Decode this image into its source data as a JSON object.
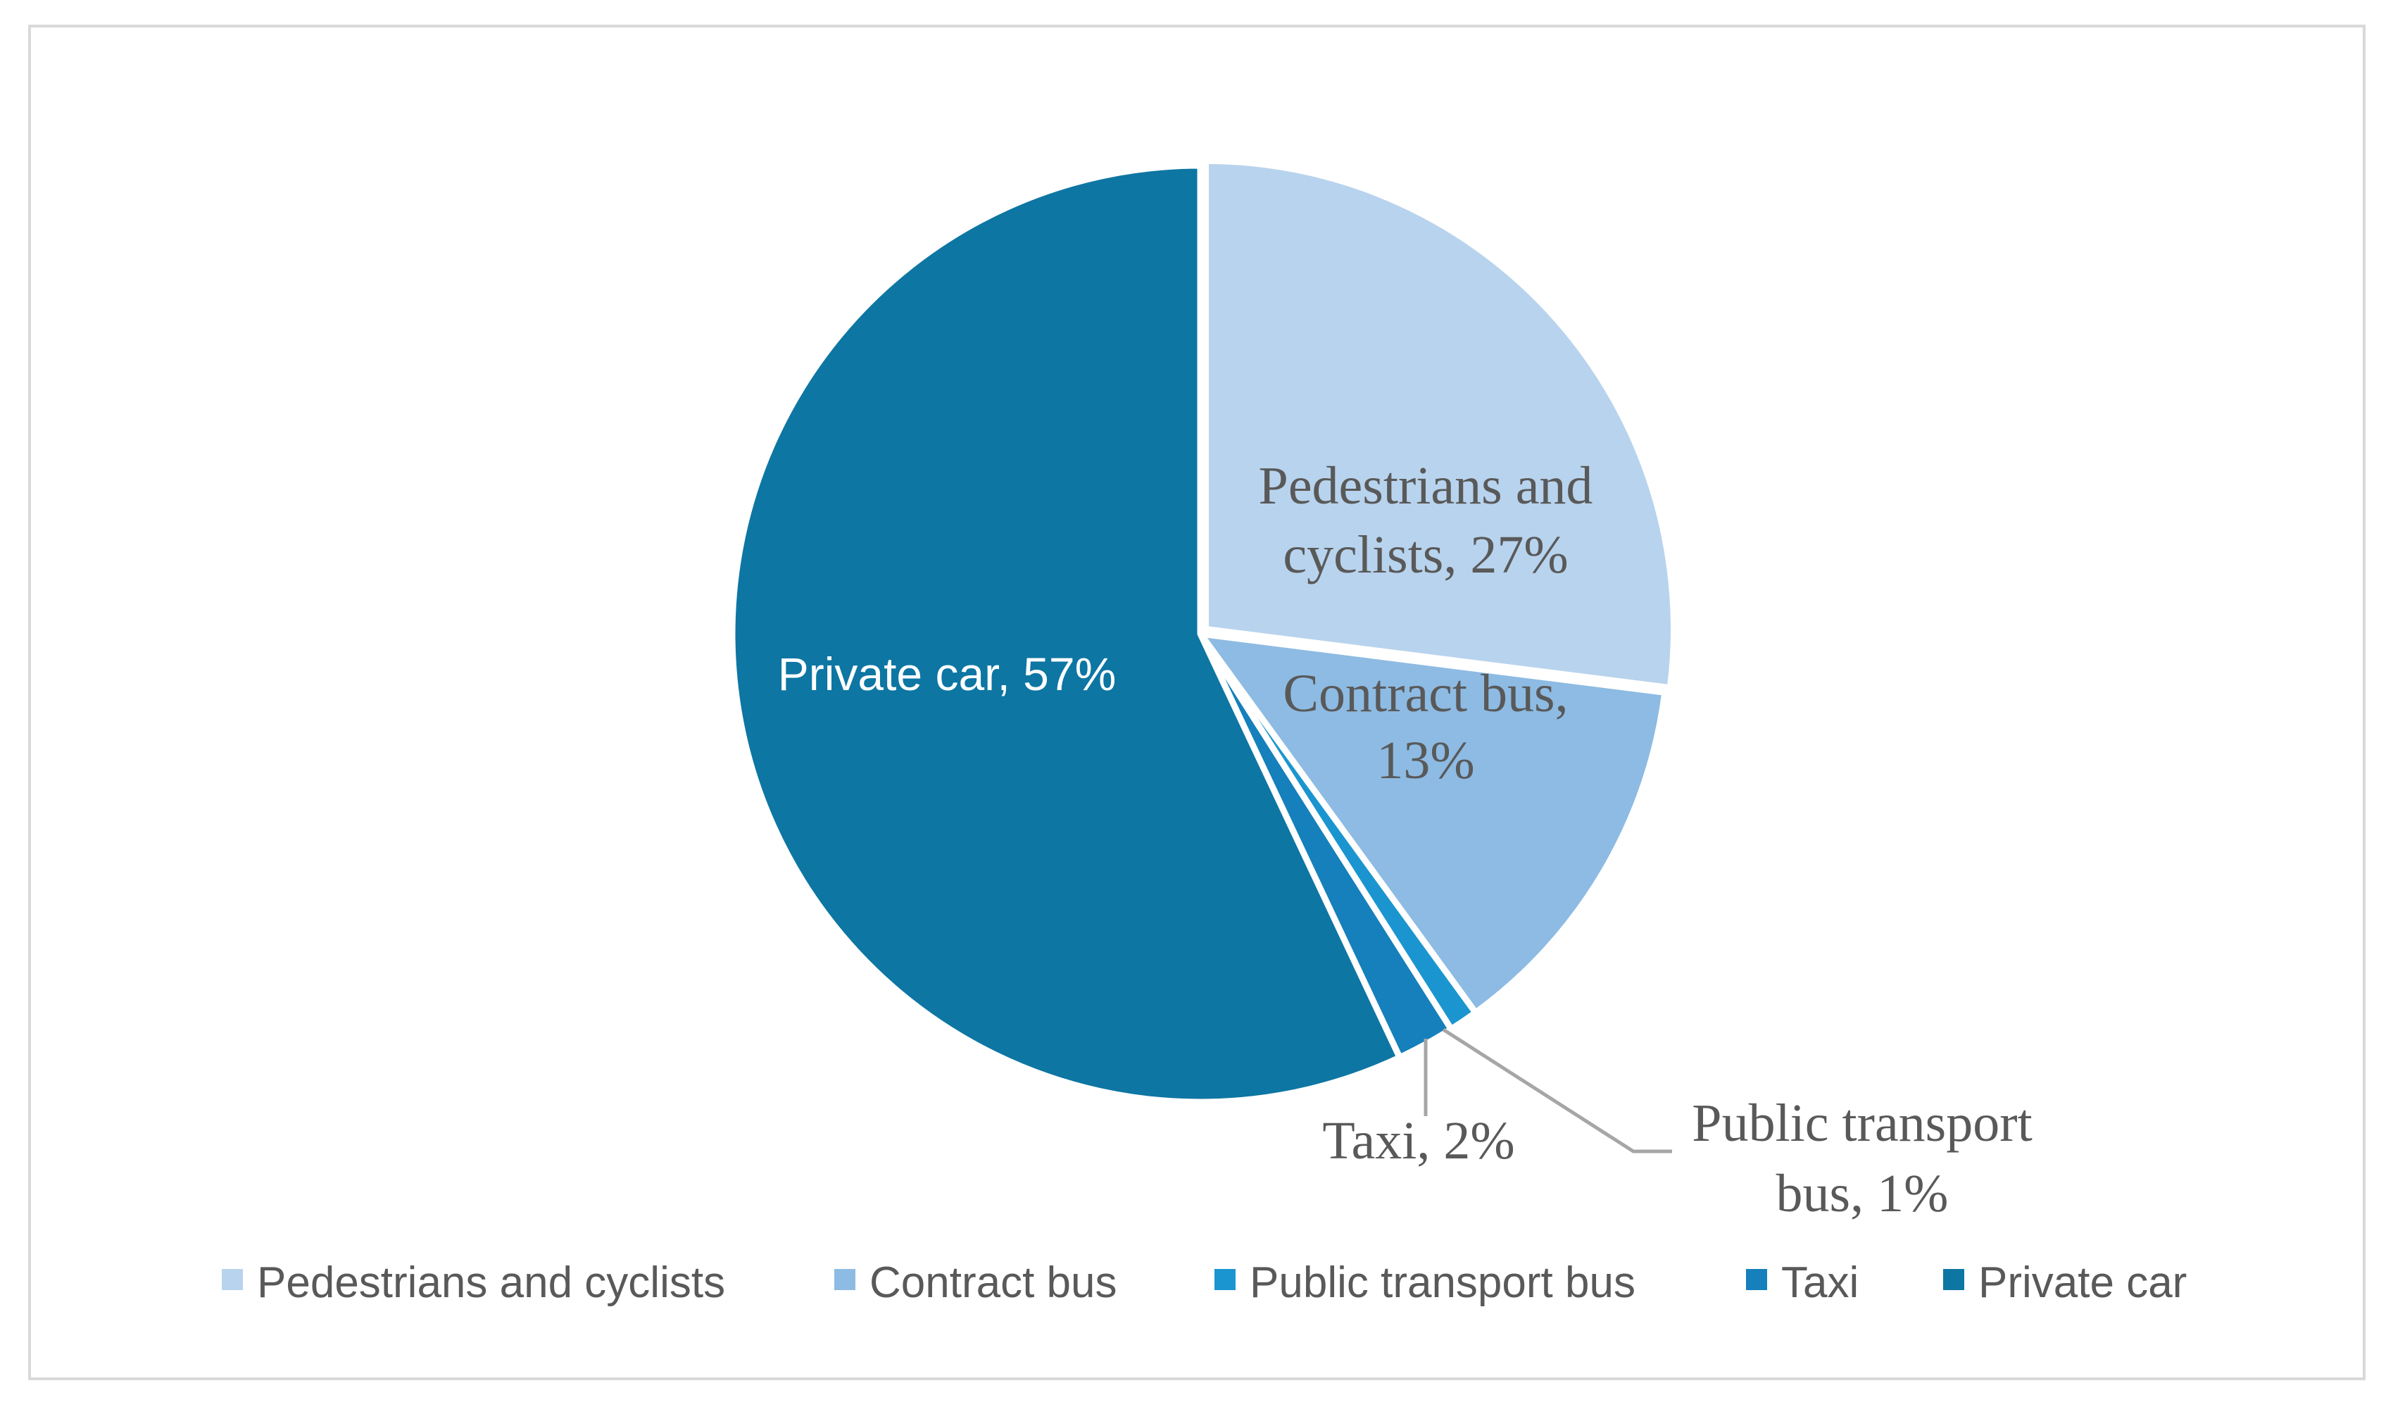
{
  "chart_data": {
    "type": "pie",
    "title": "",
    "start_angle_deg": 0,
    "direction": "clockwise",
    "slices": [
      {
        "name": "Pedestrians and cyclists",
        "value": 27,
        "label_lines": [
          "Pedestrians and",
          "cyclists, 27%"
        ],
        "color": "#b8d3ed",
        "label_color": "#595959",
        "label_font": "serif"
      },
      {
        "name": "Contract bus",
        "value": 13,
        "label_lines": [
          "Contract bus,",
          "13%"
        ],
        "color": "#8dbbe3",
        "label_color": "#595959",
        "label_font": "serif"
      },
      {
        "name": "Public transport bus",
        "value": 1,
        "label_lines": [
          "Public transport",
          "bus, 1%"
        ],
        "color": "#1b95cf",
        "label_color": "#595959",
        "label_font": "serif"
      },
      {
        "name": "Taxi",
        "value": 2,
        "label_lines": [
          "Taxi, 2%"
        ],
        "color": "#1580bb",
        "label_color": "#595959",
        "label_font": "serif"
      },
      {
        "name": "Private car",
        "value": 57,
        "label_lines": [
          "Private car, 57%"
        ],
        "color": "#0d76a3",
        "label_color": "#ffffff",
        "label_font": "sans"
      }
    ],
    "legend": {
      "position": "bottom",
      "items": [
        "Pedestrians and cyclists",
        "Contract bus",
        "Public transport bus",
        "Taxi",
        "Private car"
      ]
    }
  }
}
